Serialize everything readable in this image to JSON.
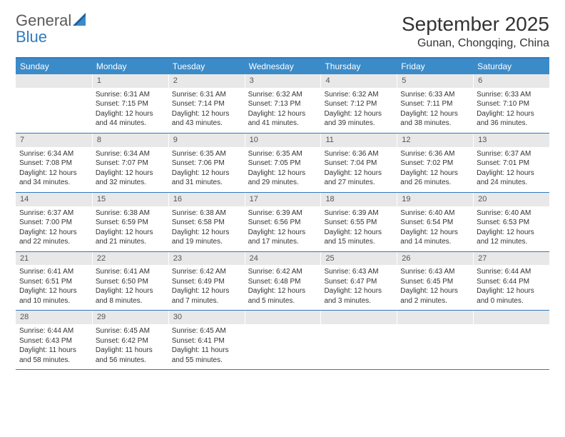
{
  "logo": {
    "text1": "General",
    "text2": "Blue"
  },
  "title": "September 2025",
  "location": "Gunan, Chongqing, China",
  "colors": {
    "header_bg": "#3b8bc9",
    "header_text": "#ffffff",
    "num_bg": "#e8e8e8",
    "border": "#2f7bbf",
    "body_text": "#333333"
  },
  "day_headers": [
    "Sunday",
    "Monday",
    "Tuesday",
    "Wednesday",
    "Thursday",
    "Friday",
    "Saturday"
  ],
  "weeks": [
    [
      {
        "n": "",
        "sr": "",
        "ss": "",
        "dl": ""
      },
      {
        "n": "1",
        "sr": "6:31 AM",
        "ss": "7:15 PM",
        "dl": "12 hours and 44 minutes."
      },
      {
        "n": "2",
        "sr": "6:31 AM",
        "ss": "7:14 PM",
        "dl": "12 hours and 43 minutes."
      },
      {
        "n": "3",
        "sr": "6:32 AM",
        "ss": "7:13 PM",
        "dl": "12 hours and 41 minutes."
      },
      {
        "n": "4",
        "sr": "6:32 AM",
        "ss": "7:12 PM",
        "dl": "12 hours and 39 minutes."
      },
      {
        "n": "5",
        "sr": "6:33 AM",
        "ss": "7:11 PM",
        "dl": "12 hours and 38 minutes."
      },
      {
        "n": "6",
        "sr": "6:33 AM",
        "ss": "7:10 PM",
        "dl": "12 hours and 36 minutes."
      }
    ],
    [
      {
        "n": "7",
        "sr": "6:34 AM",
        "ss": "7:08 PM",
        "dl": "12 hours and 34 minutes."
      },
      {
        "n": "8",
        "sr": "6:34 AM",
        "ss": "7:07 PM",
        "dl": "12 hours and 32 minutes."
      },
      {
        "n": "9",
        "sr": "6:35 AM",
        "ss": "7:06 PM",
        "dl": "12 hours and 31 minutes."
      },
      {
        "n": "10",
        "sr": "6:35 AM",
        "ss": "7:05 PM",
        "dl": "12 hours and 29 minutes."
      },
      {
        "n": "11",
        "sr": "6:36 AM",
        "ss": "7:04 PM",
        "dl": "12 hours and 27 minutes."
      },
      {
        "n": "12",
        "sr": "6:36 AM",
        "ss": "7:02 PM",
        "dl": "12 hours and 26 minutes."
      },
      {
        "n": "13",
        "sr": "6:37 AM",
        "ss": "7:01 PM",
        "dl": "12 hours and 24 minutes."
      }
    ],
    [
      {
        "n": "14",
        "sr": "6:37 AM",
        "ss": "7:00 PM",
        "dl": "12 hours and 22 minutes."
      },
      {
        "n": "15",
        "sr": "6:38 AM",
        "ss": "6:59 PM",
        "dl": "12 hours and 21 minutes."
      },
      {
        "n": "16",
        "sr": "6:38 AM",
        "ss": "6:58 PM",
        "dl": "12 hours and 19 minutes."
      },
      {
        "n": "17",
        "sr": "6:39 AM",
        "ss": "6:56 PM",
        "dl": "12 hours and 17 minutes."
      },
      {
        "n": "18",
        "sr": "6:39 AM",
        "ss": "6:55 PM",
        "dl": "12 hours and 15 minutes."
      },
      {
        "n": "19",
        "sr": "6:40 AM",
        "ss": "6:54 PM",
        "dl": "12 hours and 14 minutes."
      },
      {
        "n": "20",
        "sr": "6:40 AM",
        "ss": "6:53 PM",
        "dl": "12 hours and 12 minutes."
      }
    ],
    [
      {
        "n": "21",
        "sr": "6:41 AM",
        "ss": "6:51 PM",
        "dl": "12 hours and 10 minutes."
      },
      {
        "n": "22",
        "sr": "6:41 AM",
        "ss": "6:50 PM",
        "dl": "12 hours and 8 minutes."
      },
      {
        "n": "23",
        "sr": "6:42 AM",
        "ss": "6:49 PM",
        "dl": "12 hours and 7 minutes."
      },
      {
        "n": "24",
        "sr": "6:42 AM",
        "ss": "6:48 PM",
        "dl": "12 hours and 5 minutes."
      },
      {
        "n": "25",
        "sr": "6:43 AM",
        "ss": "6:47 PM",
        "dl": "12 hours and 3 minutes."
      },
      {
        "n": "26",
        "sr": "6:43 AM",
        "ss": "6:45 PM",
        "dl": "12 hours and 2 minutes."
      },
      {
        "n": "27",
        "sr": "6:44 AM",
        "ss": "6:44 PM",
        "dl": "12 hours and 0 minutes."
      }
    ],
    [
      {
        "n": "28",
        "sr": "6:44 AM",
        "ss": "6:43 PM",
        "dl": "11 hours and 58 minutes."
      },
      {
        "n": "29",
        "sr": "6:45 AM",
        "ss": "6:42 PM",
        "dl": "11 hours and 56 minutes."
      },
      {
        "n": "30",
        "sr": "6:45 AM",
        "ss": "6:41 PM",
        "dl": "11 hours and 55 minutes."
      },
      {
        "n": "",
        "sr": "",
        "ss": "",
        "dl": ""
      },
      {
        "n": "",
        "sr": "",
        "ss": "",
        "dl": ""
      },
      {
        "n": "",
        "sr": "",
        "ss": "",
        "dl": ""
      },
      {
        "n": "",
        "sr": "",
        "ss": "",
        "dl": ""
      }
    ]
  ],
  "labels": {
    "sunrise": "Sunrise:",
    "sunset": "Sunset:",
    "daylight": "Daylight:"
  }
}
